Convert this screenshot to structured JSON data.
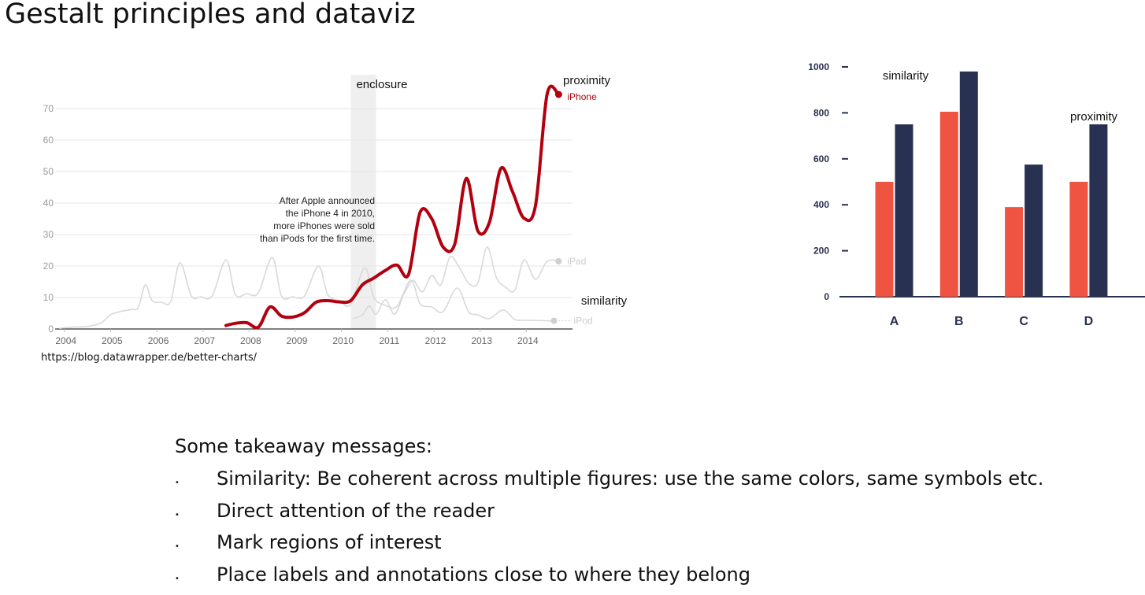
{
  "slide": {
    "title": "Gestalt principles and dataviz",
    "source": "https://blog.datawrapper.de/better-charts/",
    "takeaways_heading": "Some takeaway messages:",
    "bullet_symbol": "•",
    "takeaways": [
      "Similarity: Be coherent across multiple figures: use the same colors, same symbols etc.",
      "Direct attention of the reader",
      "Mark regions of interest",
      "Place labels and annotations close to where they belong"
    ]
  },
  "chart_data": [
    {
      "type": "line",
      "title": "",
      "xlabel": "",
      "ylabel": "",
      "xlim": [
        2003.8,
        2015.0
      ],
      "ylim": [
        0,
        75
      ],
      "x_ticks": [
        2004,
        2005,
        2006,
        2007,
        2008,
        2009,
        2010,
        2011,
        2012,
        2013,
        2014
      ],
      "y_ticks": [
        0,
        10,
        20,
        30,
        40,
        50,
        60,
        70
      ],
      "grid": true,
      "colors": {
        "iPhone": "#b3000f",
        "iPad": "#d9d9d9",
        "iPod": "#d9d9d9",
        "shade": "#efefef",
        "axis": "#333333"
      },
      "shaded_region": {
        "x": [
          2010.2,
          2010.75
        ]
      },
      "series": [
        {
          "name": "iPod",
          "label": "iPod",
          "x": [
            2003.9,
            2004.2,
            2004.5,
            2004.8,
            2005.0,
            2005.2,
            2005.45,
            2005.6,
            2005.75,
            2005.9,
            2006.1,
            2006.3,
            2006.5,
            2006.75,
            2006.95,
            2007.2,
            2007.5,
            2007.7,
            2007.95,
            2008.2,
            2008.5,
            2008.7,
            2008.95,
            2009.2,
            2009.5,
            2009.7,
            2009.95,
            2010.2,
            2010.5,
            2010.7,
            2010.95,
            2011.2,
            2011.5,
            2011.7,
            2011.95,
            2012.2,
            2012.5,
            2012.75,
            2012.95,
            2013.2,
            2013.5,
            2013.75,
            2013.95,
            2014.2,
            2014.45,
            2014.6
          ],
          "y": [
            0.2,
            0.6,
            0.8,
            2.0,
            4.5,
            5.5,
            6.2,
            6.8,
            14.0,
            9.0,
            8.5,
            8.7,
            21.0,
            10.5,
            10.2,
            10.5,
            22.0,
            11.0,
            11.2,
            11.5,
            22.7,
            10.5,
            10.2,
            10.5,
            20.0,
            11.0,
            9.0,
            7.8,
            19.5,
            10.0,
            7.5,
            7.2,
            15.5,
            8.0,
            7.0,
            5.5,
            13.0,
            5.5,
            4.5,
            3.3,
            6.0,
            3.0,
            2.8,
            2.7,
            2.6,
            2.6
          ],
          "end_value": 2.6
        },
        {
          "name": "iPad",
          "label": "iPad",
          "x": [
            2010.25,
            2010.45,
            2010.6,
            2010.75,
            2010.95,
            2011.15,
            2011.35,
            2011.55,
            2011.75,
            2011.95,
            2012.15,
            2012.35,
            2012.55,
            2012.75,
            2012.95,
            2013.15,
            2013.35,
            2013.55,
            2013.75,
            2013.95,
            2014.2,
            2014.45,
            2014.7
          ],
          "y": [
            3.3,
            4.5,
            7.3,
            4.7,
            9.3,
            4.7,
            11.1,
            15.4,
            11.8,
            17.0,
            14.0,
            22.9,
            19.5,
            14.6,
            14.6,
            26.0,
            16.4,
            13.3,
            12.3,
            21.9,
            15.8,
            21.5,
            21.5
          ],
          "end_value": 21.5
        },
        {
          "name": "iPhone",
          "label": "iPhone",
          "x": [
            2007.5,
            2007.7,
            2007.95,
            2008.2,
            2008.45,
            2008.7,
            2008.95,
            2009.2,
            2009.45,
            2009.7,
            2009.95,
            2010.2,
            2010.45,
            2010.7,
            2010.95,
            2011.2,
            2011.45,
            2011.7,
            2011.95,
            2012.2,
            2012.45,
            2012.7,
            2012.95,
            2013.2,
            2013.45,
            2013.7,
            2013.95,
            2014.2,
            2014.45,
            2014.7
          ],
          "y": [
            1.1,
            1.8,
            2.0,
            0.6,
            7.0,
            4.1,
            3.8,
            5.2,
            8.5,
            9.0,
            8.6,
            9.0,
            14.0,
            16.2,
            18.6,
            20.3,
            17.3,
            37.0,
            35.1,
            26.0,
            26.9,
            47.8,
            31.2,
            33.8,
            51.0,
            43.7,
            35.2,
            39.3,
            74.5,
            74.5
          ],
          "end_value": 74.5
        }
      ],
      "annotations": [
        {
          "id": "apple-note",
          "lines": [
            "After Apple announced",
            "the iPhone 4 in 2010,",
            "more iPhones were sold",
            "than iPods for the first time."
          ]
        }
      ],
      "gestalt_labels": {
        "enclosure": "enclosure",
        "proximity": "proximity",
        "similarity": "similarity"
      }
    },
    {
      "type": "bar",
      "title": "",
      "xlabel": "",
      "ylabel": "",
      "categories": [
        "A",
        "B",
        "C",
        "D"
      ],
      "ylim": [
        0,
        1000
      ],
      "y_ticks": [
        0,
        200,
        400,
        600,
        800,
        1000
      ],
      "grid": false,
      "series": [
        {
          "name": "series-1",
          "color": "#ef5442",
          "values": [
            500,
            805,
            390,
            500
          ]
        },
        {
          "name": "series-2",
          "color": "#283151",
          "values": [
            750,
            980,
            575,
            750
          ]
        }
      ],
      "gestalt_labels": {
        "similarity": "similarity",
        "proximity": "proximity"
      }
    }
  ]
}
